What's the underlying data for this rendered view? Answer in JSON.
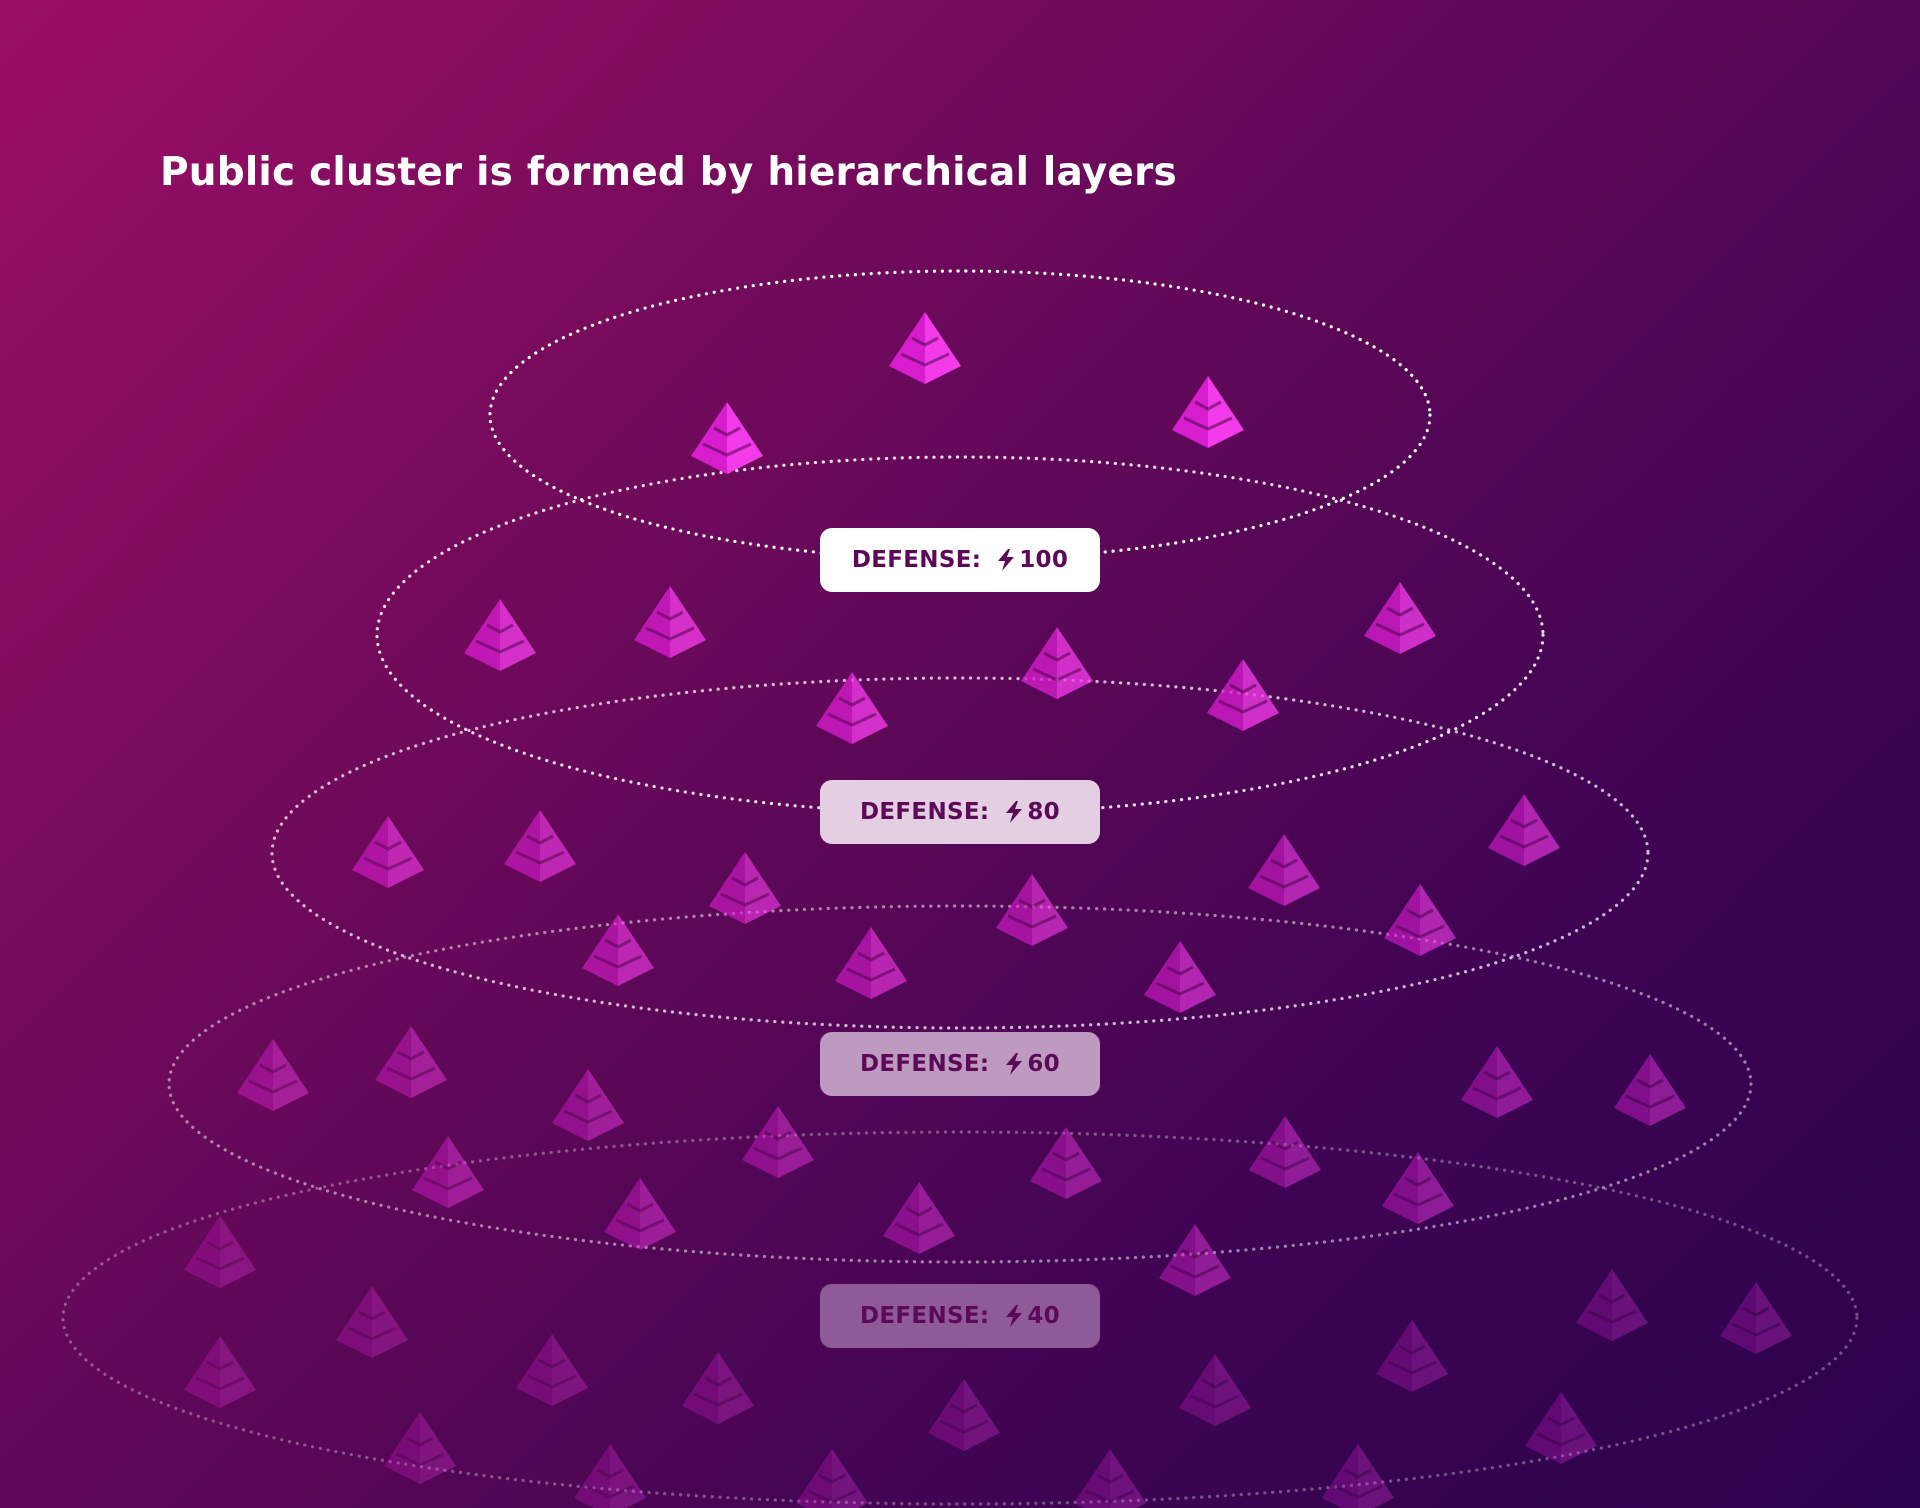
{
  "title": "Public cluster is formed by hierarchical layers",
  "icon": "lightning-bolt-icon",
  "node_icon": "pyramid-icon",
  "colors": {
    "background_start": "#9b0f65",
    "background_end": "#2a024d",
    "node": "#e21fd8",
    "badge_text": "#5c0a58"
  },
  "layers": [
    {
      "label": "DEFENSE:",
      "value": "100"
    },
    {
      "label": "DEFENSE:",
      "value": "80"
    },
    {
      "label": "DEFENSE:",
      "value": "60"
    },
    {
      "label": "DEFENSE:",
      "value": "40"
    }
  ]
}
